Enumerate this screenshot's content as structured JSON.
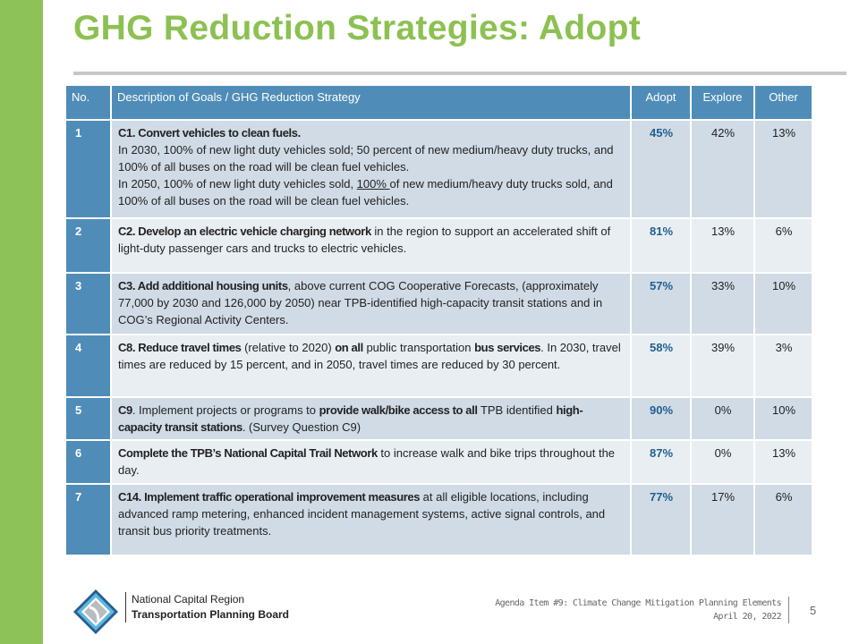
{
  "slide": {
    "title": "GHG Reduction Strategies: Adopt",
    "page_number": "5"
  },
  "colors": {
    "accent_green": "#8cc152",
    "header_blue": "#4f8db8",
    "adopt_blue": "#1f5f8f"
  },
  "table": {
    "headers": {
      "no": "No.",
      "description": "Description of Goals / GHG Reduction Strategy",
      "adopt": "Adopt",
      "explore": "Explore",
      "other": "Other"
    },
    "rows": [
      {
        "no": "1",
        "description": [
          {
            "t": "C1. Convert vehicles to clean fuels.",
            "b": true
          },
          {
            "br": true
          },
          {
            "t": "In 2030, 100% of new light duty vehicles sold; 50 percent of new medium/heavy duty trucks, and 100% of all buses on the road will be clean fuel vehicles."
          },
          {
            "br": true
          },
          {
            "t": "In 2050, 100% of new light duty vehicles sold, "
          },
          {
            "t": "100% ",
            "u": true
          },
          {
            "t": "of new medium/heavy duty trucks sold, and 100% of all buses on the road will be clean fuel vehicles."
          }
        ],
        "adopt": "45%",
        "explore": "42%",
        "other": "13%"
      },
      {
        "no": "2",
        "description": [
          {
            "t": "C2. Develop an electric vehicle charging network",
            "b": true
          },
          {
            "t": " in the region to support an accelerated shift of light-duty passenger cars and trucks to electric vehicles."
          }
        ],
        "adopt": "81%",
        "explore": "13%",
        "other": "6%"
      },
      {
        "no": "3",
        "description": [
          {
            "t": "C3. Add additional housing units",
            "b": true
          },
          {
            "t": ", above current COG Cooperative Forecasts, (approximately 77,000 by 2030 and 126,000 by 2050) near TPB-identified high-capacity transit stations and in COG’s Regional Activity Centers."
          }
        ],
        "adopt": "57%",
        "explore": "33%",
        "other": "10%"
      },
      {
        "no": "4",
        "description": [
          {
            "t": "C8.  Reduce travel times",
            "b": true
          },
          {
            "t": " (relative to 2020) "
          },
          {
            "t": "on all",
            "b": true
          },
          {
            "t": " public transportation "
          },
          {
            "t": "bus services",
            "b": true
          },
          {
            "t": ". In 2030, travel times are reduced by 15 percent, and in 2050, travel times are reduced by 30 percent."
          }
        ],
        "adopt": "58%",
        "explore": "39%",
        "other": "3%"
      },
      {
        "no": "5",
        "description": [
          {
            "t": "C9",
            "b": true
          },
          {
            "t": ".  Implement projects or programs to "
          },
          {
            "t": "provide walk/bike access to all",
            "b": true
          },
          {
            "t": " TPB identified "
          },
          {
            "t": "high-capacity transit stations",
            "b": true
          },
          {
            "t": ". (Survey Question C9)"
          }
        ],
        "adopt": "90%",
        "explore": "0%",
        "other": "10%"
      },
      {
        "no": "6",
        "description": [
          {
            "t": "Complete the TPB’s National Capital Trail Network",
            "b": true
          },
          {
            "t": " to increase walk and bike trips throughout the day."
          }
        ],
        "adopt": "87%",
        "explore": "0%",
        "other": "13%"
      },
      {
        "no": "7",
        "description": [
          {
            "t": "C14. Implement traffic operational improvement measures",
            "b": true
          },
          {
            "t": " at all eligible locations, including advanced ramp metering, enhanced incident management systems, active signal controls, and transit bus priority treatments."
          }
        ],
        "adopt": "77%",
        "explore": "17%",
        "other": "6%"
      }
    ]
  },
  "footer": {
    "org_line1": "National Capital Region",
    "org_line2": "Transportation Planning Board",
    "agenda": "Agenda Item #9: Climate Change Mitigation Planning Elements",
    "date": "April 20, 2022"
  }
}
